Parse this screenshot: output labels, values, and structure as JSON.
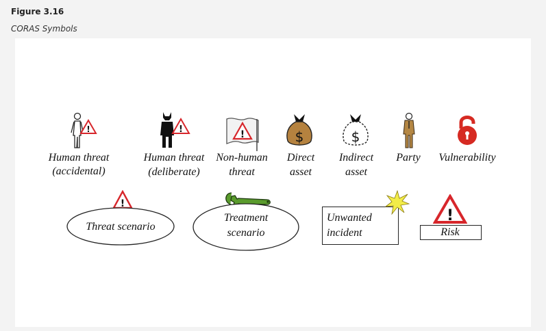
{
  "figure": {
    "number": "Figure 3.16",
    "caption": "CORAS Symbols"
  },
  "colors": {
    "warning_red": "#d7262b",
    "money_bag": "#b5823f",
    "party_suit": "#b48744",
    "vulnerability_red": "#d62a22",
    "wrench_green": "#5a9b2d",
    "burst_yellow": "#f2ec48"
  },
  "symbols": {
    "human_threat_accidental": {
      "line1": "Human threat",
      "line2": "(accidental)"
    },
    "human_threat_deliberate": {
      "line1": "Human threat",
      "line2": "(deliberate)"
    },
    "non_human_threat": {
      "line1": "Non-human",
      "line2": "threat"
    },
    "direct_asset": {
      "line1": "Direct",
      "line2": "asset"
    },
    "indirect_asset": {
      "line1": "Indirect",
      "line2": "asset"
    },
    "party": {
      "label": "Party"
    },
    "vulnerability": {
      "label": "Vulnerability"
    },
    "threat_scenario": {
      "label": "Threat scenario"
    },
    "treatment_scenario": {
      "line1": "Treatment",
      "line2": "scenario"
    },
    "unwanted_incident": {
      "line1": "Unwanted",
      "line2": "incident"
    },
    "risk": {
      "label": "Risk"
    }
  }
}
